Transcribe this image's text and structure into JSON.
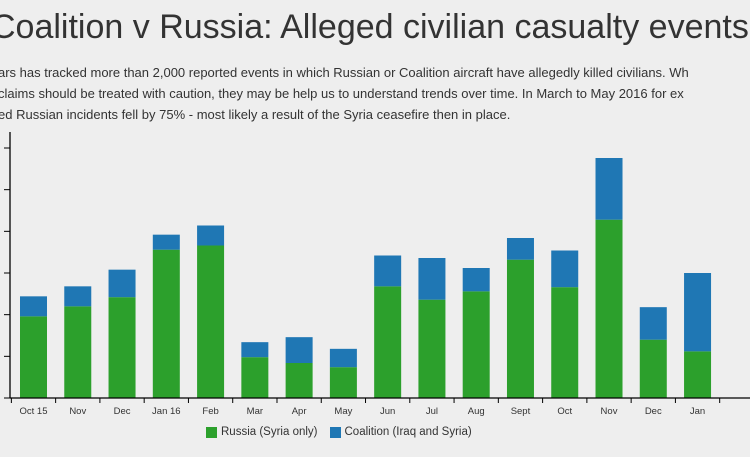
{
  "title": "Coalition v Russia: Alleged civilian casualty events",
  "intro_lines": [
    "ars has tracked more than 2,000 reported events in which Russian or Coalition aircraft have allegedly killed civilians. Wh",
    "claims should be treated with caution, they may be help us to understand trends over time. In March to May 2016 for ex",
    "ed Russian incidents fell by 75% - most likely a result of the Syria ceasefire then in place."
  ],
  "chart_data": {
    "type": "bar",
    "stacked": true,
    "title": "Coalition v Russia: Alleged civilian casualty events",
    "xlabel": "",
    "ylabel": "",
    "ylim": [
      0,
      300
    ],
    "yticks": [
      0,
      50,
      100,
      150,
      200,
      250,
      300
    ],
    "categories": [
      "Oct 15",
      "Nov",
      "Dec",
      "Jan 16",
      "Feb",
      "Mar",
      "Apr",
      "May",
      "Jun",
      "Jul",
      "Aug",
      "Sept",
      "Oct",
      "Nov",
      "Dec",
      "Jan"
    ],
    "series": [
      {
        "name": "Russia (Syria only)",
        "color": "#2ca02c",
        "values": [
          98,
          110,
          121,
          178,
          183,
          49,
          42,
          37,
          134,
          118,
          128,
          166,
          133,
          214,
          70,
          56
        ]
      },
      {
        "name": "Coalition (Iraq and Syria)",
        "color": "#1f77b4",
        "values": [
          24,
          24,
          33,
          18,
          24,
          18,
          31,
          22,
          37,
          50,
          28,
          26,
          44,
          74,
          39,
          94
        ]
      }
    ],
    "legend": "bottom-center"
  }
}
